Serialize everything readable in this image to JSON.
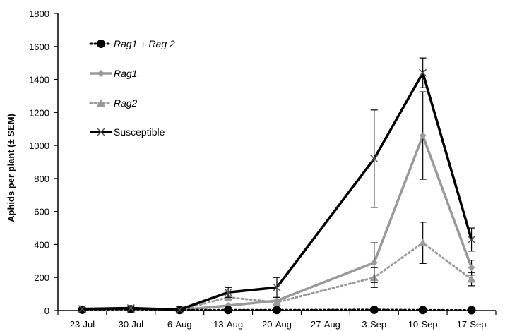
{
  "chart_data": {
    "type": "line",
    "title": "",
    "xlabel": "",
    "ylabel": "Aphids per plant (± SEM)",
    "ylim": [
      0,
      1800
    ],
    "yticks": [
      0,
      200,
      400,
      600,
      800,
      1000,
      1200,
      1400,
      1600,
      1800
    ],
    "categories": [
      "23-Jul",
      "30-Jul",
      "6-Aug",
      "13-Aug",
      "20-Aug",
      "27-Aug",
      "3-Sep",
      "10-Sep",
      "17-Sep"
    ],
    "grid": false,
    "legend_position": "top-left",
    "series": [
      {
        "name": "Rag1 + Rag 2",
        "italic": true,
        "color": "#000000",
        "line_style": "dotted",
        "marker": "circle",
        "values": [
          5,
          8,
          3,
          3,
          3,
          null,
          5,
          3,
          2
        ],
        "errors": [
          0,
          0,
          0,
          0,
          0,
          null,
          0,
          0,
          0
        ]
      },
      {
        "name": "Rag1",
        "italic": true,
        "color": "#999999",
        "line_style": "solid",
        "marker": "diamond",
        "values": [
          5,
          8,
          3,
          30,
          60,
          null,
          290,
          1060,
          260
        ],
        "errors": [
          0,
          0,
          0,
          0,
          0,
          null,
          120,
          265,
          45
        ]
      },
      {
        "name": "Rag2",
        "italic": true,
        "color": "#999999",
        "line_style": "dotted",
        "marker": "triangle",
        "values": [
          5,
          8,
          3,
          80,
          50,
          null,
          200,
          410,
          190
        ],
        "errors": [
          0,
          0,
          0,
          0,
          0,
          null,
          60,
          125,
          40
        ]
      },
      {
        "name": "Susceptible",
        "italic": false,
        "color": "#000000",
        "line_style": "solid",
        "marker": "x",
        "values": [
          10,
          15,
          5,
          110,
          140,
          null,
          920,
          1440,
          430
        ],
        "errors": [
          0,
          0,
          0,
          30,
          60,
          null,
          295,
          90,
          70
        ]
      }
    ]
  }
}
